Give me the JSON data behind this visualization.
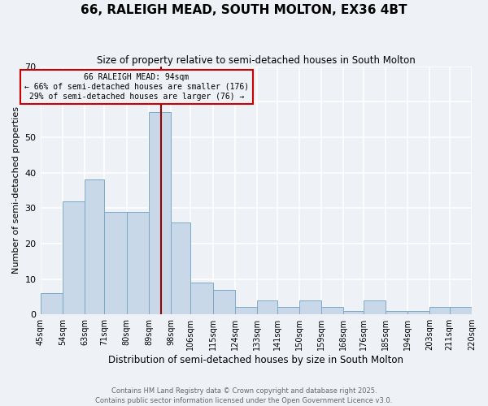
{
  "title": "66, RALEIGH MEAD, SOUTH MOLTON, EX36 4BT",
  "subtitle": "Size of property relative to semi-detached houses in South Molton",
  "xlabel": "Distribution of semi-detached houses by size in South Molton",
  "ylabel": "Number of semi-detached properties",
  "footer_line1": "Contains HM Land Registry data © Crown copyright and database right 2025.",
  "footer_line2": "Contains public sector information licensed under the Open Government Licence v3.0.",
  "annotation_line1": "66 RALEIGH MEAD: 94sqm",
  "annotation_line2": "← 66% of semi-detached houses are smaller (176)",
  "annotation_line3": "29% of semi-detached houses are larger (76) →",
  "property_line_x": 94,
  "bar_color": "#c8d8e8",
  "bar_edge_color": "#7aaac8",
  "property_line_color": "#990000",
  "annotation_box_edge_color": "#cc0000",
  "background_color": "#eef2f7",
  "grid_color": "#ffffff",
  "bins": [
    45,
    54,
    63,
    71,
    80,
    89,
    98,
    106,
    115,
    124,
    133,
    141,
    150,
    159,
    168,
    176,
    185,
    194,
    203,
    211,
    220
  ],
  "bin_labels": [
    "45sqm",
    "54sqm",
    "63sqm",
    "71sqm",
    "80sqm",
    "89sqm",
    "98sqm",
    "106sqm",
    "115sqm",
    "124sqm",
    "133sqm",
    "141sqm",
    "150sqm",
    "159sqm",
    "168sqm",
    "176sqm",
    "185sqm",
    "194sqm",
    "203sqm",
    "211sqm",
    "220sqm"
  ],
  "counts": [
    6,
    32,
    38,
    29,
    29,
    57,
    26,
    9,
    7,
    2,
    4,
    2,
    4,
    2,
    1,
    4,
    1,
    1,
    2,
    2
  ],
  "ylim": [
    0,
    70
  ],
  "yticks": [
    0,
    10,
    20,
    30,
    40,
    50,
    60,
    70
  ]
}
